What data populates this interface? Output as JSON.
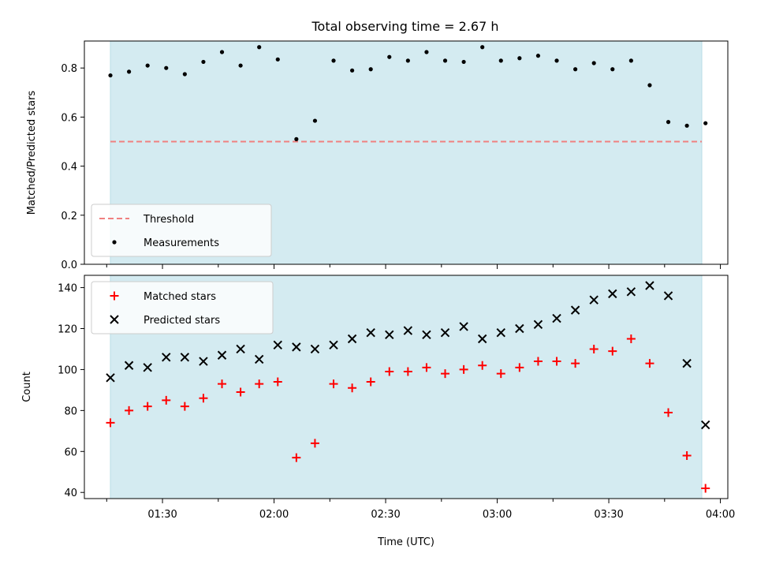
{
  "figure": {
    "title": "Total observing time = 2.67 h"
  },
  "colors": {
    "observing_span": "#d4ebf1",
    "threshold": "#f08080",
    "measurements": "#000000",
    "matched": "#ff0000",
    "predicted": "#000000"
  },
  "chart_data": [
    {
      "type": "scatter",
      "xlabel": "",
      "ylabel": "Matched/Predicted stars",
      "xlim": [
        "01:09",
        "04:02"
      ],
      "ylim": [
        0.0,
        0.91
      ],
      "yticks": [
        0.0,
        0.2,
        0.4,
        0.6,
        0.8
      ],
      "ytick_labels": [
        "0.0",
        "0.2",
        "0.4",
        "0.6",
        "0.8"
      ],
      "x_ticks": [
        "01:15",
        "01:30",
        "01:45",
        "02:00",
        "02:15",
        "02:30",
        "02:45",
        "03:00",
        "03:15",
        "03:30",
        "03:45",
        "04:00"
      ],
      "x_tick_labels": [
        "",
        "",
        "",
        "",
        "",
        "",
        "",
        "",
        "",
        "",
        "",
        ""
      ],
      "shaded_span": [
        "01:16",
        "03:55"
      ],
      "threshold": {
        "name": "Threshold",
        "y": 0.5,
        "x": [
          "01:16",
          "03:55"
        ]
      },
      "legend": [
        "Threshold",
        "Measurements"
      ],
      "legend_position": "lower-left",
      "series": [
        {
          "name": "Measurements",
          "marker": "dot",
          "x": [
            "01:16",
            "01:21",
            "01:26",
            "01:31",
            "01:36",
            "01:41",
            "01:46",
            "01:51",
            "01:56",
            "02:01",
            "02:06",
            "02:11",
            "02:16",
            "02:21",
            "02:26",
            "02:31",
            "02:36",
            "02:41",
            "02:46",
            "02:51",
            "02:56",
            "03:01",
            "03:06",
            "03:11",
            "03:16",
            "03:21",
            "03:26",
            "03:31",
            "03:36",
            "03:41",
            "03:46",
            "03:51",
            "03:56"
          ],
          "y": [
            0.77,
            0.785,
            0.81,
            0.8,
            0.775,
            0.825,
            0.865,
            0.81,
            0.885,
            0.835,
            0.51,
            0.585,
            0.83,
            0.79,
            0.795,
            0.845,
            0.83,
            0.865,
            0.83,
            0.825,
            0.885,
            0.83,
            0.84,
            0.85,
            0.83,
            0.795,
            0.82,
            0.795,
            0.83,
            0.73,
            0.58,
            0.565,
            0.575
          ]
        }
      ]
    },
    {
      "type": "scatter",
      "xlabel": "Time (UTC)",
      "ylabel": "Count",
      "xlim": [
        "01:09",
        "04:02"
      ],
      "ylim": [
        37,
        146
      ],
      "yticks": [
        40,
        60,
        80,
        100,
        120,
        140
      ],
      "ytick_labels": [
        "40",
        "60",
        "80",
        "100",
        "120",
        "140"
      ],
      "x_ticks": [
        "01:15",
        "01:30",
        "01:45",
        "02:00",
        "02:15",
        "02:30",
        "02:45",
        "03:00",
        "03:15",
        "03:30",
        "03:45",
        "04:00"
      ],
      "x_tick_labels": [
        "",
        "01:30",
        "",
        "02:00",
        "",
        "02:30",
        "",
        "03:00",
        "",
        "03:30",
        "",
        "04:00"
      ],
      "shaded_span": [
        "01:16",
        "03:55"
      ],
      "legend": [
        "Matched stars",
        "Predicted stars"
      ],
      "legend_position": "upper-left",
      "series": [
        {
          "name": "Matched stars",
          "marker": "plus",
          "x": [
            "01:16",
            "01:21",
            "01:26",
            "01:31",
            "01:36",
            "01:41",
            "01:46",
            "01:51",
            "01:56",
            "02:01",
            "02:06",
            "02:11",
            "02:16",
            "02:21",
            "02:26",
            "02:31",
            "02:36",
            "02:41",
            "02:46",
            "02:51",
            "02:56",
            "03:01",
            "03:06",
            "03:11",
            "03:16",
            "03:21",
            "03:26",
            "03:31",
            "03:36",
            "03:41",
            "03:46",
            "03:51",
            "03:56"
          ],
          "y": [
            74,
            80,
            82,
            85,
            82,
            86,
            93,
            89,
            93,
            94,
            57,
            64,
            93,
            91,
            94,
            99,
            99,
            101,
            98,
            100,
            102,
            98,
            101,
            104,
            104,
            103,
            110,
            109,
            115,
            103,
            79,
            58,
            42
          ]
        },
        {
          "name": "Predicted stars",
          "marker": "x",
          "x": [
            "01:16",
            "01:21",
            "01:26",
            "01:31",
            "01:36",
            "01:41",
            "01:46",
            "01:51",
            "01:56",
            "02:01",
            "02:06",
            "02:11",
            "02:16",
            "02:21",
            "02:26",
            "02:31",
            "02:36",
            "02:41",
            "02:46",
            "02:51",
            "02:56",
            "03:01",
            "03:06",
            "03:11",
            "03:16",
            "03:21",
            "03:26",
            "03:31",
            "03:36",
            "03:41",
            "03:46",
            "03:51",
            "03:56"
          ],
          "y": [
            96,
            102,
            101,
            106,
            106,
            104,
            107,
            110,
            105,
            112,
            111,
            110,
            112,
            115,
            118,
            117,
            119,
            117,
            118,
            121,
            115,
            118,
            120,
            122,
            125,
            129,
            134,
            137,
            138,
            141,
            136,
            103,
            73
          ]
        }
      ]
    }
  ]
}
